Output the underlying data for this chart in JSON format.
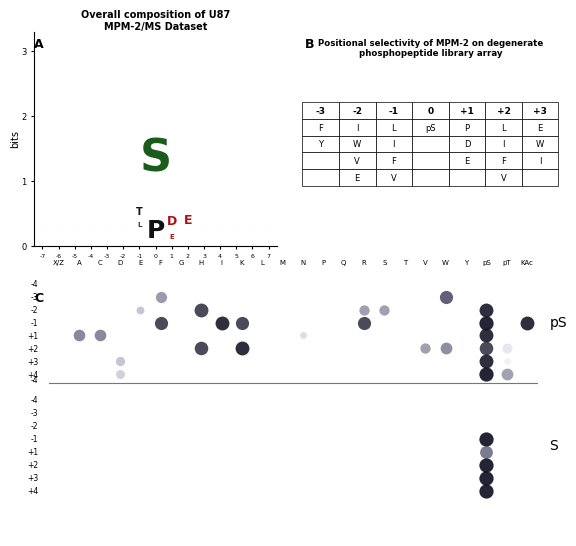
{
  "panel_A_title": "Overall composition of U87\nMPM-2/MS Dataset",
  "panel_B_title": "Positional selectivity of MPM-2 on degenerate\nphosphopeptide library array",
  "table_columns": [
    "-3",
    "-2",
    "-1",
    "0",
    "+1",
    "+2",
    "+3"
  ],
  "table_data": [
    [
      "F",
      "I",
      "L",
      "pS",
      "P",
      "L",
      "E"
    ],
    [
      "Y",
      "W",
      "I",
      "",
      "D",
      "I",
      "W"
    ],
    [
      "",
      "V",
      "F",
      "",
      "E",
      "F",
      "I"
    ],
    [
      "",
      "E",
      "V",
      "",
      "",
      "V",
      ""
    ]
  ],
  "dot_columns": [
    "X/Z",
    "A",
    "C",
    "D",
    "E",
    "F",
    "G",
    "H",
    "I",
    "K",
    "L",
    "M",
    "N",
    "P",
    "Q",
    "R",
    "S",
    "T",
    "V",
    "W",
    "Y",
    "pS",
    "pT",
    "KAc"
  ],
  "dot_rows_pS": [
    "-4",
    "-3",
    "-2",
    "-1",
    "+1",
    "+2",
    "+3",
    "+4"
  ],
  "dot_rows_S": [
    "-4",
    "-3",
    "-2",
    "-1",
    "+1",
    "+2",
    "+3",
    "+4"
  ],
  "pS_dots": [
    {
      "col": "F",
      "row": "-3",
      "size": 65,
      "alpha": 0.55,
      "color": "#4a4a6a"
    },
    {
      "col": "E",
      "row": "-2",
      "size": 32,
      "alpha": 0.38,
      "color": "#6a6a8a"
    },
    {
      "col": "F",
      "row": "-1",
      "size": 90,
      "alpha": 0.82,
      "color": "#222233"
    },
    {
      "col": "H",
      "row": "-2",
      "size": 100,
      "alpha": 0.82,
      "color": "#222233"
    },
    {
      "col": "I",
      "row": "-1",
      "size": 100,
      "alpha": 0.88,
      "color": "#111122"
    },
    {
      "col": "K",
      "row": "-1",
      "size": 90,
      "alpha": 0.82,
      "color": "#222233"
    },
    {
      "col": "H",
      "row": "+2",
      "size": 95,
      "alpha": 0.82,
      "color": "#222233"
    },
    {
      "col": "K",
      "row": "+2",
      "size": 100,
      "alpha": 0.88,
      "color": "#111122"
    },
    {
      "col": "A",
      "row": "+1",
      "size": 70,
      "alpha": 0.65,
      "color": "#4a4a6a"
    },
    {
      "col": "C",
      "row": "+1",
      "size": 70,
      "alpha": 0.65,
      "color": "#4a4a6a"
    },
    {
      "col": "D",
      "row": "+3",
      "size": 45,
      "alpha": 0.38,
      "color": "#6a6a8a"
    },
    {
      "col": "D",
      "row": "+4",
      "size": 42,
      "alpha": 0.35,
      "color": "#7a7a9a"
    },
    {
      "col": "N",
      "row": "+1",
      "size": 25,
      "alpha": 0.28,
      "color": "#888899"
    },
    {
      "col": "R",
      "row": "-2",
      "size": 55,
      "alpha": 0.52,
      "color": "#4a4a6a"
    },
    {
      "col": "S",
      "row": "-2",
      "size": 55,
      "alpha": 0.52,
      "color": "#4a4a6a"
    },
    {
      "col": "R",
      "row": "-1",
      "size": 90,
      "alpha": 0.82,
      "color": "#222233"
    },
    {
      "col": "V",
      "row": "+2",
      "size": 55,
      "alpha": 0.52,
      "color": "#4a4a6a"
    },
    {
      "col": "W",
      "row": "-3",
      "size": 90,
      "alpha": 0.78,
      "color": "#333355"
    },
    {
      "col": "W",
      "row": "+2",
      "size": 72,
      "alpha": 0.62,
      "color": "#4a4a6a"
    },
    {
      "col": "pS",
      "row": "-2",
      "size": 100,
      "alpha": 0.88,
      "color": "#111122"
    },
    {
      "col": "pS",
      "row": "-1",
      "size": 105,
      "alpha": 0.92,
      "color": "#111122"
    },
    {
      "col": "pS",
      "row": "+1",
      "size": 100,
      "alpha": 0.88,
      "color": "#111122"
    },
    {
      "col": "pS",
      "row": "+2",
      "size": 95,
      "alpha": 0.82,
      "color": "#222233"
    },
    {
      "col": "pS",
      "row": "+3",
      "size": 100,
      "alpha": 0.88,
      "color": "#111122"
    },
    {
      "col": "pS",
      "row": "+4",
      "size": 105,
      "alpha": 0.92,
      "color": "#111122"
    },
    {
      "col": "pT",
      "row": "+2",
      "size": 52,
      "alpha": 0.28,
      "color": "#aaaacc"
    },
    {
      "col": "pT",
      "row": "+3",
      "size": 22,
      "alpha": 0.22,
      "color": "#bbbbdd"
    },
    {
      "col": "pT",
      "row": "+4",
      "size": 72,
      "alpha": 0.55,
      "color": "#555577"
    },
    {
      "col": "KAc",
      "row": "-1",
      "size": 100,
      "alpha": 0.88,
      "color": "#111122"
    }
  ],
  "S_dots": [
    {
      "col": "pS",
      "row": "-1",
      "size": 105,
      "alpha": 0.92,
      "color": "#111122"
    },
    {
      "col": "pS",
      "row": "+1",
      "size": 85,
      "alpha": 0.65,
      "color": "#333355"
    },
    {
      "col": "pS",
      "row": "+2",
      "size": 105,
      "alpha": 0.92,
      "color": "#111122"
    },
    {
      "col": "pS",
      "row": "+3",
      "size": 105,
      "alpha": 0.92,
      "color": "#111122"
    },
    {
      "col": "pS",
      "row": "+4",
      "size": 105,
      "alpha": 0.92,
      "color": "#111122"
    }
  ],
  "bg_color": "#ffffff"
}
